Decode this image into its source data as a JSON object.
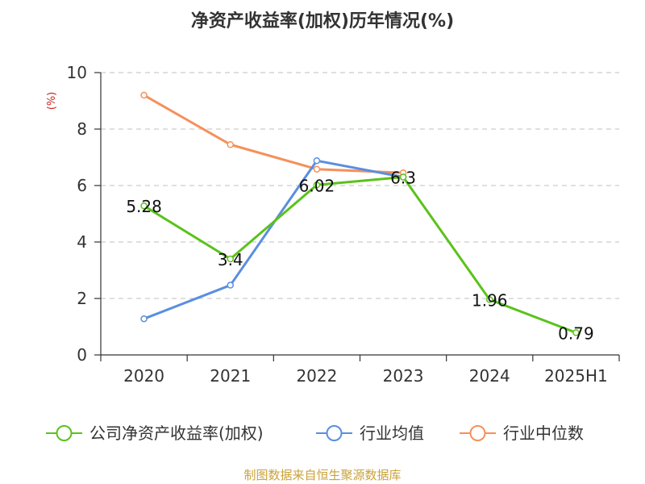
{
  "chart_data": {
    "type": "line",
    "title": "净资产收益率(加权)历年情况(%)",
    "ylabel": "(%)",
    "xlabel": "",
    "categories": [
      "2020",
      "2021",
      "2022",
      "2023",
      "2024",
      "2025H1"
    ],
    "ylim": [
      0,
      10
    ],
    "yticks": [
      "0",
      "2",
      "4",
      "6",
      "8",
      "10"
    ],
    "grid": true,
    "legend_position": "bottom",
    "series": [
      {
        "name": "公司净资产收益率(加权)",
        "color": "#5bc21c",
        "values": [
          5.28,
          3.4,
          6.02,
          6.3,
          1.96,
          0.79
        ],
        "labels": [
          "5.28",
          "3.4",
          "6.02",
          "6.3",
          "1.96",
          "0.79"
        ]
      },
      {
        "name": "行业均值",
        "color": "#5a8ee0",
        "values": [
          1.28,
          2.47,
          6.88,
          6.3,
          null,
          null
        ]
      },
      {
        "name": "行业中位数",
        "color": "#f5905a",
        "values": [
          9.2,
          7.45,
          6.58,
          6.45,
          null,
          null
        ]
      }
    ]
  },
  "source_text": "制图数据来自恒生聚源数据库",
  "colors": {
    "unit": "#cc2222",
    "source": "#c9a23a",
    "grid": "#cccccc",
    "axis": "#333333"
  }
}
